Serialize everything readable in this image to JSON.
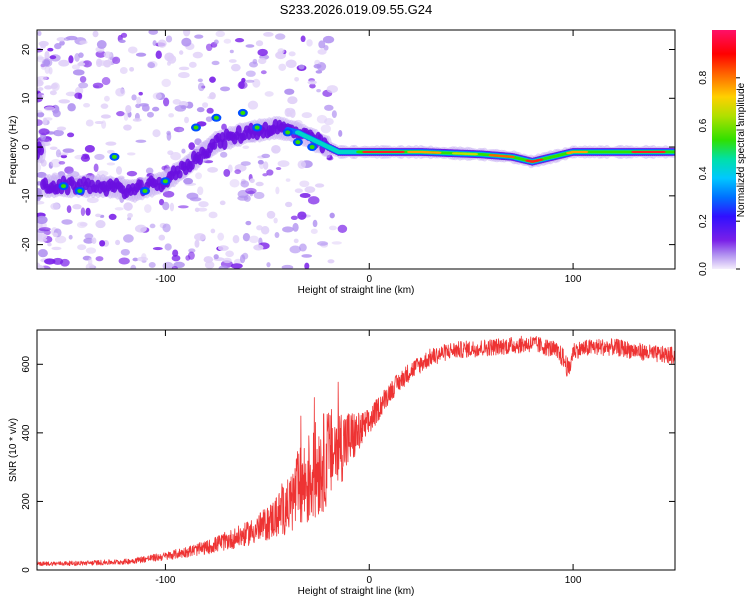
{
  "title": "S233.2026.019.09.55.G24",
  "chart_data": [
    {
      "type": "heatmap",
      "panel": "spectrogram",
      "title": "S233.2026.019.09.55.G24",
      "xlabel": "Height of straight line (km)",
      "ylabel": "Frequency (Hz)",
      "xlim": [
        -163,
        150
      ],
      "ylim": [
        -25,
        24
      ],
      "xticks": [
        -100,
        0,
        100
      ],
      "yticks": [
        -20,
        -10,
        0,
        10,
        20
      ],
      "colorbar": {
        "label": "Normalized spectral amplitude",
        "range": [
          0.0,
          1.0
        ],
        "ticks": [
          "0.0",
          "0.2",
          "0.4",
          "0.6",
          "0.8"
        ],
        "colors": [
          "#e8e0f8",
          "#9060e0",
          "#6a00e0",
          "#3000ff",
          "#0060ff",
          "#00c0ff",
          "#00e0a0",
          "#40e000",
          "#c0e000",
          "#ffd000",
          "#ff6000",
          "#ff0000",
          "#ff1060"
        ]
      },
      "ridge": [
        {
          "x": -160,
          "y": -8
        },
        {
          "x": -145,
          "y": -8
        },
        {
          "x": -130,
          "y": -8
        },
        {
          "x": -115,
          "y": -9
        },
        {
          "x": -100,
          "y": -7
        },
        {
          "x": -90,
          "y": -4
        },
        {
          "x": -75,
          "y": 1
        },
        {
          "x": -60,
          "y": 3
        },
        {
          "x": -45,
          "y": 4
        },
        {
          "x": -35,
          "y": 3
        },
        {
          "x": -25,
          "y": 1
        },
        {
          "x": -15,
          "y": -1
        },
        {
          "x": 0,
          "y": -1
        },
        {
          "x": 25,
          "y": -1
        },
        {
          "x": 55,
          "y": -1.5
        },
        {
          "x": 70,
          "y": -2
        },
        {
          "x": 80,
          "y": -3
        },
        {
          "x": 90,
          "y": -2
        },
        {
          "x": 100,
          "y": -1
        },
        {
          "x": 150,
          "y": -1
        }
      ]
    },
    {
      "type": "line",
      "panel": "snr",
      "xlabel": "Height of straight line (km)",
      "ylabel": "SNR (10 * v/v)",
      "xlim": [
        -163,
        150
      ],
      "ylim": [
        0,
        700
      ],
      "xticks": [
        -100,
        0,
        100
      ],
      "yticks": [
        0,
        200,
        400,
        600
      ],
      "series": [
        {
          "name": "SNR",
          "color": "#ee3333",
          "x": [
            -163,
            -140,
            -120,
            -100,
            -80,
            -60,
            -50,
            -40,
            -35,
            -30,
            -25,
            -20,
            -15,
            -10,
            -5,
            0,
            10,
            20,
            30,
            40,
            50,
            60,
            70,
            80,
            90,
            95,
            98,
            100,
            110,
            120,
            130,
            140,
            150
          ],
          "mean": [
            18,
            20,
            24,
            40,
            65,
            105,
            135,
            185,
            230,
            260,
            300,
            330,
            360,
            380,
            400,
            430,
            520,
            580,
            620,
            640,
            645,
            650,
            655,
            660,
            645,
            620,
            580,
            640,
            650,
            650,
            640,
            630,
            625
          ],
          "noise": [
            6,
            7,
            8,
            12,
            20,
            35,
            50,
            80,
            120,
            140,
            150,
            140,
            120,
            90,
            60,
            40,
            30,
            28,
            26,
            25,
            25,
            25,
            25,
            25,
            25,
            30,
            30,
            25,
            25,
            25,
            25,
            25,
            25
          ]
        }
      ]
    }
  ]
}
